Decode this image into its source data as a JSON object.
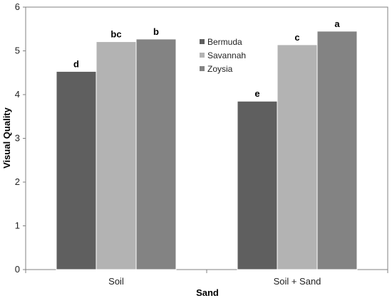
{
  "chart_data": {
    "type": "bar",
    "title": "",
    "xlabel": "Sand",
    "ylabel": "Visual Quality",
    "ylim": [
      0,
      6
    ],
    "yticks": [
      "0",
      "1",
      "2",
      "3",
      "4",
      "5",
      "6"
    ],
    "categories": [
      "Soil",
      "Soil + Sand"
    ],
    "series": [
      {
        "name": "Bermuda",
        "color": "#5f5f5f",
        "values": [
          4.53,
          3.85
        ],
        "labels": [
          "d",
          "e"
        ]
      },
      {
        "name": "Savannah",
        "color": "#b3b3b3",
        "values": [
          5.21,
          5.14
        ],
        "labels": [
          "bc",
          "c"
        ]
      },
      {
        "name": "Zoysia",
        "color": "#838383",
        "values": [
          5.27,
          5.45
        ],
        "labels": [
          "b",
          "a"
        ]
      }
    ],
    "legend_position": "upper-center",
    "grid": false
  }
}
